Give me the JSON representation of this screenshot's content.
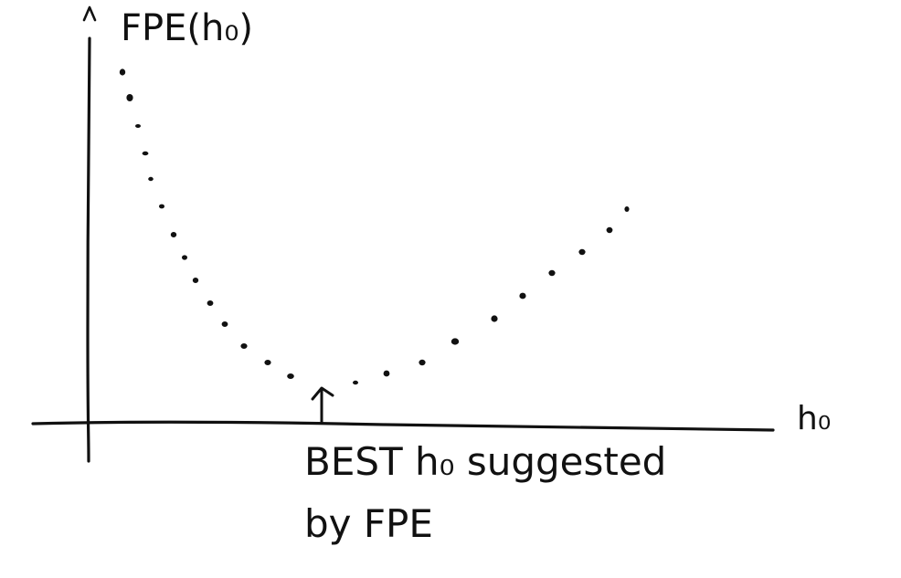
{
  "y_axis_label": "FPE(h₀)",
  "x_axis_label": "h₀",
  "annotation_line1": "BEST h₀ suggested",
  "annotation_line2": "by FPE",
  "ink_color": "#111111",
  "background_color": "#ffffff"
}
